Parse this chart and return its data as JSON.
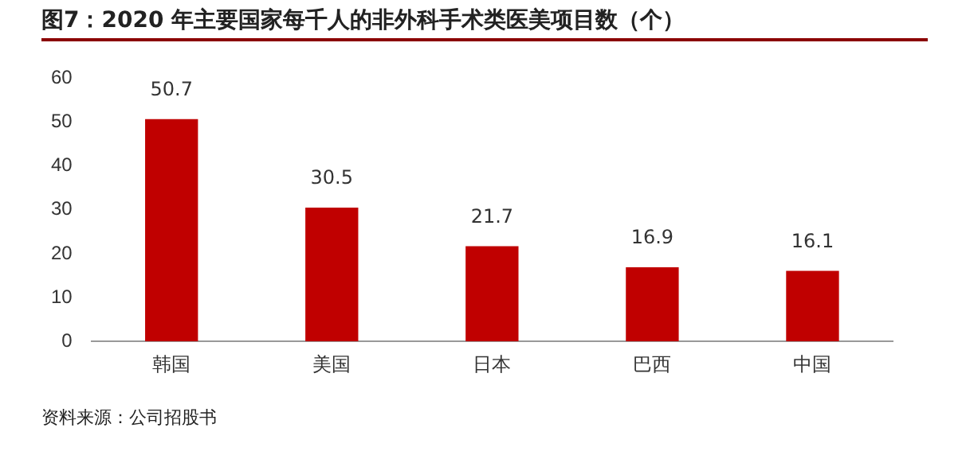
{
  "chart_data": {
    "type": "bar",
    "title": "图7：2020 年主要国家每千人的非外科手术类医美项目数（个）",
    "categories": [
      "韩国",
      "美国",
      "日本",
      "巴西",
      "中国"
    ],
    "values": [
      50.7,
      30.5,
      21.7,
      16.9,
      16.1
    ],
    "color": "#c00000",
    "ylim": [
      0,
      60
    ],
    "yticks": [
      0,
      10,
      20,
      30,
      40,
      50,
      60
    ],
    "grid": false,
    "data_labels": true,
    "annotations": [
      "资料来源：公司招股书"
    ]
  }
}
